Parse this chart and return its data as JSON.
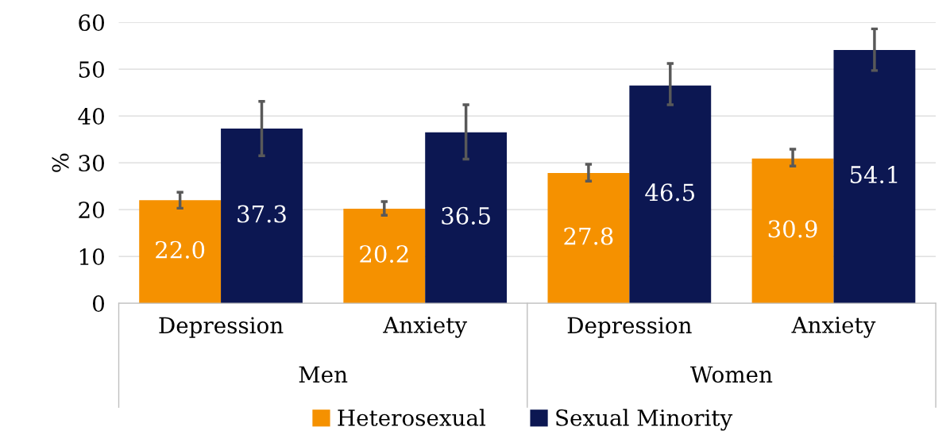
{
  "chart_data": {
    "type": "bar",
    "ylabel": "%",
    "categories": [
      "Depression",
      "Anxiety",
      "Depression",
      "Anxiety"
    ],
    "annotations": [
      "Men",
      "Women"
    ],
    "series": [
      {
        "name": "Heterosexual",
        "color": "#f59100",
        "values": [
          22.0,
          20.2,
          27.8,
          30.9
        ],
        "value_labels": [
          "22.0",
          "20.2",
          "27.8",
          "30.9"
        ],
        "errors": [
          [
            20.3,
            23.7
          ],
          [
            18.8,
            21.7
          ],
          [
            26.1,
            29.7
          ],
          [
            29.3,
            32.9
          ]
        ]
      },
      {
        "name": "Sexual Minority",
        "color": "#0c1752",
        "values": [
          37.3,
          36.5,
          46.5,
          54.1
        ],
        "value_labels": [
          "37.3",
          "36.5",
          "46.5",
          "54.1"
        ],
        "errors": [
          [
            31.5,
            43.1
          ],
          [
            30.8,
            42.4
          ],
          [
            42.4,
            51.2
          ],
          [
            49.7,
            58.6
          ]
        ]
      }
    ],
    "ylim": [
      0,
      60
    ],
    "yticks": [
      0,
      10,
      20,
      30,
      40,
      50,
      60
    ],
    "grid": "y",
    "legend": "bottom"
  }
}
